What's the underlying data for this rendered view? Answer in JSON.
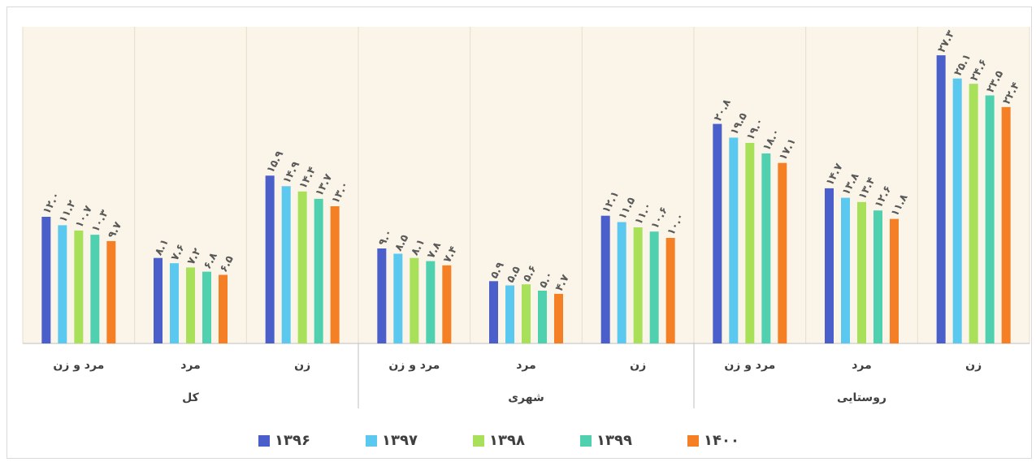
{
  "chart_data": {
    "type": "bar",
    "groups": [
      {
        "label": "کل",
        "categories": [
          "مرد و زن",
          "مرد",
          "زن"
        ]
      },
      {
        "label": "شهری",
        "categories": [
          "مرد و زن",
          "مرد",
          "زن"
        ]
      },
      {
        "label": "روستایی",
        "categories": [
          "مرد و زن",
          "مرد",
          "زن"
        ]
      }
    ],
    "ylim": [
      0,
      30
    ],
    "series": [
      {
        "name": "۱۳۹۶",
        "color": "#4a5fc9",
        "values": [
          12.0,
          8.1,
          15.9,
          9.0,
          5.9,
          12.1,
          20.8,
          14.7,
          27.3
        ],
        "value_labels": [
          "۱۲.۰",
          "۸.۱",
          "۱۵.۹",
          "۹.۰",
          "۵.۹",
          "۱۲.۱",
          "۲۰.۸",
          "۱۴.۷",
          "۲۷.۳"
        ]
      },
      {
        "name": "۱۳۹۷",
        "color": "#5bc8f0",
        "values": [
          11.2,
          7.6,
          14.9,
          8.5,
          5.5,
          11.5,
          19.5,
          13.8,
          25.1
        ],
        "value_labels": [
          "۱۱.۲",
          "۷.۶",
          "۱۴.۹",
          "۸.۵",
          "۵.۵",
          "۱۱.۵",
          "۱۹.۵",
          "۱۳.۸",
          "۲۵.۱"
        ]
      },
      {
        "name": "۱۳۹۸",
        "color": "#a8e05a",
        "values": [
          10.7,
          7.2,
          14.4,
          8.1,
          5.6,
          11.0,
          19.0,
          13.4,
          24.6
        ],
        "value_labels": [
          "۱۰.۷",
          "۷.۲",
          "۱۴.۴",
          "۸.۱",
          "۵.۶",
          "۱۱.۰",
          "۱۹.۰",
          "۱۳.۴",
          "۲۴.۶"
        ]
      },
      {
        "name": "۱۳۹۹",
        "color": "#4fd1b0",
        "values": [
          10.3,
          6.8,
          13.7,
          7.8,
          5.0,
          10.6,
          18.0,
          12.6,
          23.5
        ],
        "value_labels": [
          "۱۰.۳",
          "۶.۸",
          "۱۳.۷",
          "۷.۸",
          "۵.۰",
          "۱۰.۶",
          "۱۸.۰",
          "۱۲.۶",
          "۲۳.۵"
        ]
      },
      {
        "name": "۱۴۰۰",
        "color": "#f57f25",
        "values": [
          9.7,
          6.5,
          13.0,
          7.4,
          4.7,
          10.0,
          17.1,
          11.8,
          22.4
        ],
        "value_labels": [
          "۹.۷",
          "۶.۵",
          "۱۳.۰",
          "۷.۴",
          "۴.۷",
          "۱۰.۰",
          "۱۷.۱",
          "۱۱.۸",
          "۲۲.۴"
        ]
      }
    ]
  }
}
